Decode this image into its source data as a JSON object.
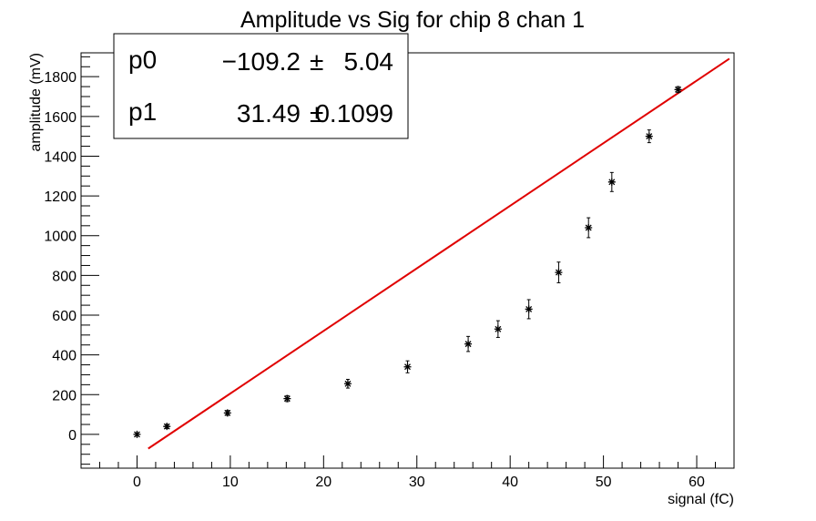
{
  "chart_data": {
    "type": "scatter",
    "title": "Amplitude vs Sig for chip 8 chan 1",
    "xlabel": "signal (fC)",
    "ylabel": "amplitude (mV)",
    "xlim": [
      -6,
      64
    ],
    "ylim": [
      -170,
      1920
    ],
    "x_ticks": [
      0,
      10,
      20,
      30,
      40,
      50,
      60
    ],
    "y_ticks": [
      0,
      200,
      400,
      600,
      800,
      1000,
      1200,
      1400,
      1600,
      1800
    ],
    "grid": false,
    "series": [
      {
        "marker": "star",
        "color": "#000000",
        "points": [
          {
            "x": 0.0,
            "y": 0,
            "err": 8
          },
          {
            "x": 3.2,
            "y": 40,
            "err": 10
          },
          {
            "x": 9.7,
            "y": 108,
            "err": 12
          },
          {
            "x": 16.1,
            "y": 180,
            "err": 15
          },
          {
            "x": 22.6,
            "y": 255,
            "err": 22
          },
          {
            "x": 29.0,
            "y": 340,
            "err": 30
          },
          {
            "x": 35.5,
            "y": 455,
            "err": 38
          },
          {
            "x": 38.7,
            "y": 530,
            "err": 42
          },
          {
            "x": 42.0,
            "y": 630,
            "err": 48
          },
          {
            "x": 45.2,
            "y": 815,
            "err": 52
          },
          {
            "x": 48.4,
            "y": 1040,
            "err": 50
          },
          {
            "x": 50.9,
            "y": 1270,
            "err": 48
          },
          {
            "x": 54.9,
            "y": 1500,
            "err": 32
          },
          {
            "x": 58.0,
            "y": 1735,
            "err": 15
          }
        ]
      }
    ],
    "fit": {
      "color": "#e00000",
      "x_range": [
        1.2,
        63.5
      ],
      "p0": -109.2,
      "p1": 31.49
    },
    "stats_box": {
      "rows": [
        {
          "name": "p0",
          "value": "−109.2",
          "pm": "±",
          "error": "5.04"
        },
        {
          "name": "p1",
          "value": "31.49",
          "pm": "±",
          "error": "0.1099"
        }
      ]
    }
  }
}
